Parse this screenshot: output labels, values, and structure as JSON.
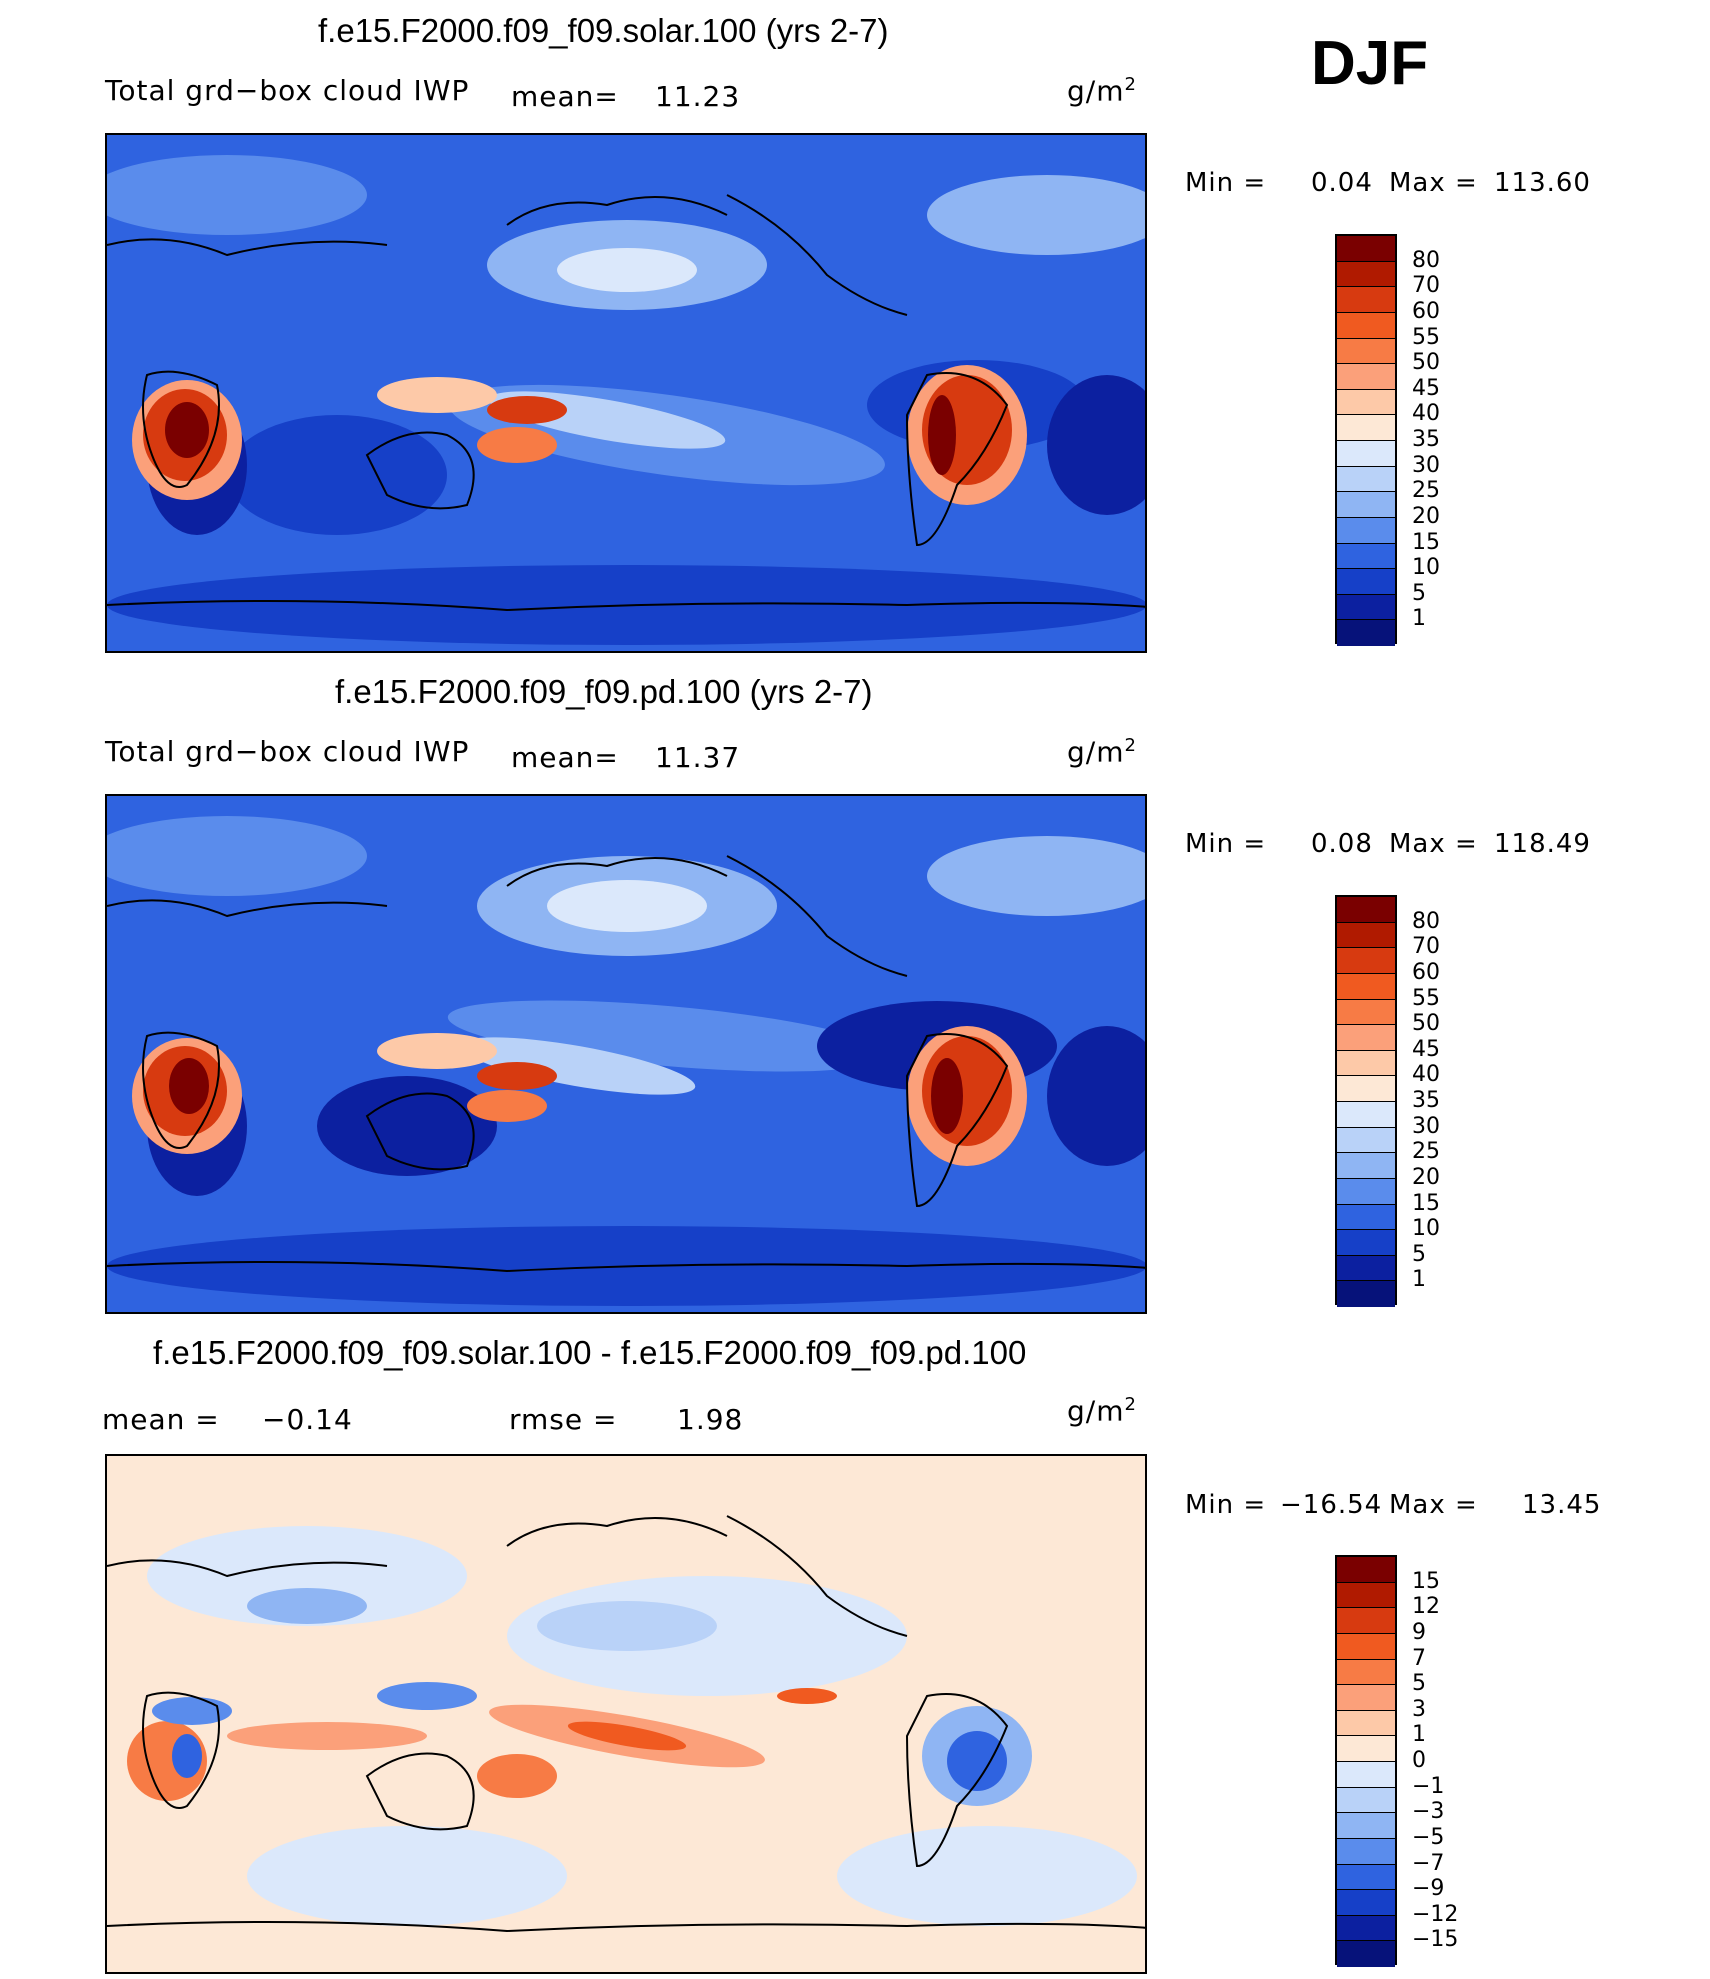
{
  "season": "DJF",
  "panels": [
    {
      "title": "f.e15.F2000.f09_f09.solar.100 (yrs 2-7)",
      "variable": "Total grd−box cloud IWP",
      "mean_label": "mean=",
      "mean_value": "11.23",
      "units": "g/m",
      "units_exp": "2",
      "min_label": "Min  =",
      "min_value": "0.04",
      "max_label": "Max  =",
      "max_value": "113.60",
      "colorbar": [
        "80",
        "70",
        "60",
        "55",
        "50",
        "45",
        "40",
        "35",
        "30",
        "25",
        "20",
        "15",
        "10",
        "5",
        "1"
      ]
    },
    {
      "title": "f.e15.F2000.f09_f09.pd.100 (yrs 2-7)",
      "variable": "Total grd−box cloud IWP",
      "mean_label": "mean=",
      "mean_value": "11.37",
      "units": "g/m",
      "units_exp": "2",
      "min_label": "Min  =",
      "min_value": "0.08",
      "max_label": "Max  =",
      "max_value": "118.49",
      "colorbar": [
        "80",
        "70",
        "60",
        "55",
        "50",
        "45",
        "40",
        "35",
        "30",
        "25",
        "20",
        "15",
        "10",
        "5",
        "1"
      ]
    },
    {
      "title": "f.e15.F2000.f09_f09.solar.100 - f.e15.F2000.f09_f09.pd.100",
      "mean_label": "mean  =",
      "mean_value": "−0.14",
      "rmse_label": "rmse  =",
      "rmse_value": "1.98",
      "units": "g/m",
      "units_exp": "2",
      "min_label": "Min  =",
      "min_value": "−16.54",
      "max_label": "Max  =",
      "max_value": "13.45",
      "colorbar": [
        "15",
        "12",
        "9",
        "7",
        "5",
        "3",
        "1",
        "0",
        "−1",
        "−3",
        "−5",
        "−7",
        "−9",
        "−12",
        "−15"
      ]
    }
  ],
  "colors": {
    "abs_scale": [
      "#7a0000",
      "#b01a00",
      "#d73a10",
      "#f05a20",
      "#f77b45",
      "#fba07a",
      "#fdc9a8",
      "#fde8d6",
      "#dbe8fb",
      "#b9d2f8",
      "#8fb5f3",
      "#5a8cec",
      "#2f63e0",
      "#1640c8",
      "#0c20a0",
      "#06127a"
    ],
    "diff_scale": [
      "#7a0000",
      "#b01a00",
      "#d73a10",
      "#f05a20",
      "#f77b45",
      "#fba07a",
      "#fdc9a8",
      "#fde8d6",
      "#dbe8fb",
      "#b9d2f8",
      "#8fb5f3",
      "#5a8cec",
      "#2f63e0",
      "#1640c8",
      "#0c20a0",
      "#06127a"
    ]
  }
}
